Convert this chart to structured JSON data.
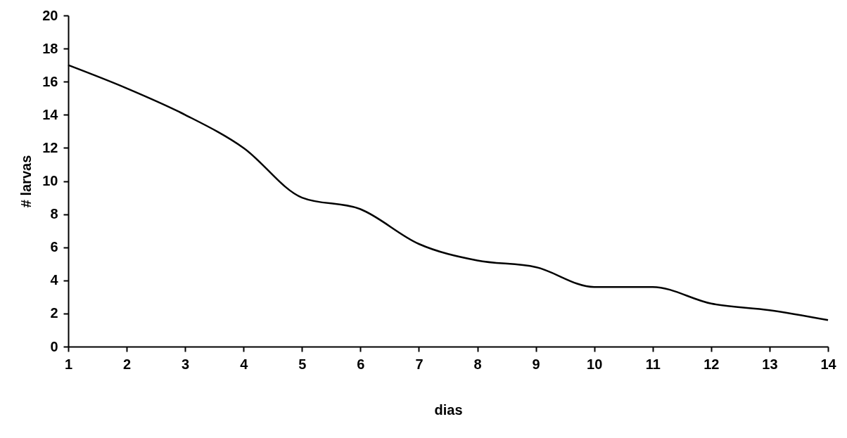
{
  "chart_data": {
    "type": "line",
    "xlabel": "dias",
    "ylabel": "# larvas",
    "x": [
      1,
      2,
      3,
      4,
      5,
      6,
      7,
      8,
      9,
      10,
      11,
      12,
      13,
      14
    ],
    "series": [
      {
        "color": "#000000",
        "values": [
          17.0,
          15.6,
          14.0,
          12.0,
          9.0,
          8.3,
          6.2,
          5.2,
          4.8,
          3.6,
          3.6,
          2.6,
          2.2,
          1.6
        ]
      }
    ],
    "xlim": [
      1,
      14
    ],
    "xticks": [
      1,
      2,
      3,
      4,
      5,
      6,
      7,
      8,
      9,
      10,
      11,
      12,
      13,
      14
    ],
    "ylim": [
      0,
      20
    ],
    "yticks": [
      0,
      2,
      4,
      6,
      8,
      10,
      12,
      14,
      16,
      18,
      20
    ],
    "grid": false,
    "marker": "none",
    "line_style": "solid"
  }
}
